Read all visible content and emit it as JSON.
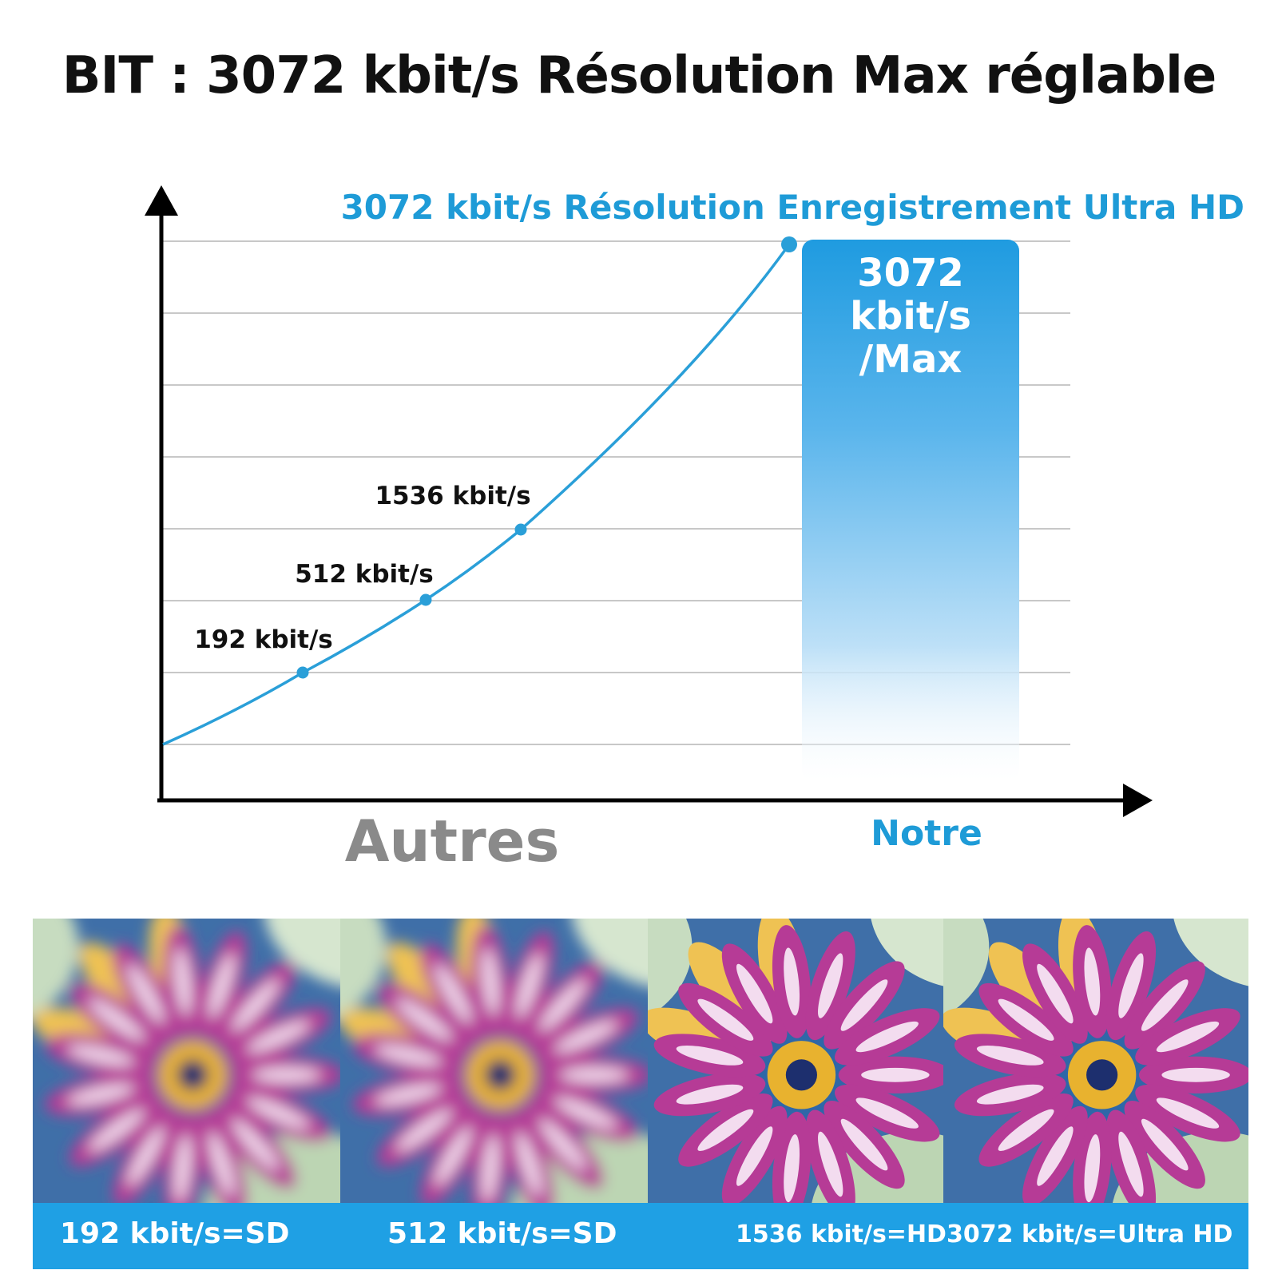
{
  "header": {
    "title": "BIT : 3072 kbit/s Résolution Max réglable"
  },
  "chart_data": {
    "type": "line",
    "title": "3072 kbit/s Résolution Enregistrement Ultra HD",
    "series": [
      {
        "values": [
          192,
          512,
          1536,
          3072
        ],
        "point_labels": [
          "192 kbit/s",
          "512 kbit/s",
          "1536 kbit/s",
          ""
        ]
      }
    ],
    "highlight_bar": {
      "value": 3072,
      "label_lines": [
        "3072",
        "kbit/s",
        "/Max"
      ]
    },
    "x_labels": {
      "left": "Autres",
      "right": "Notre"
    },
    "grid": true,
    "colors": {
      "line": "#2a9fd8",
      "title": "#1e9bd7",
      "bar": "#1f9be0",
      "left_label": "#8a8a8a",
      "right_label": "#1e9bd7"
    }
  },
  "comparison": {
    "captions": [
      "192 kbit/s=SD",
      "512 kbit/s=SD",
      "1536 kbit/s=HD",
      "3072 kbit/s=Ultra HD"
    ],
    "photos": [
      {
        "icon": "flower-photo-blurred"
      },
      {
        "icon": "flower-photo-blurred"
      },
      {
        "icon": "flower-photo-sharp"
      },
      {
        "icon": "flower-photo-sharp"
      }
    ],
    "caption_bar_color": "#1fa0e4"
  }
}
